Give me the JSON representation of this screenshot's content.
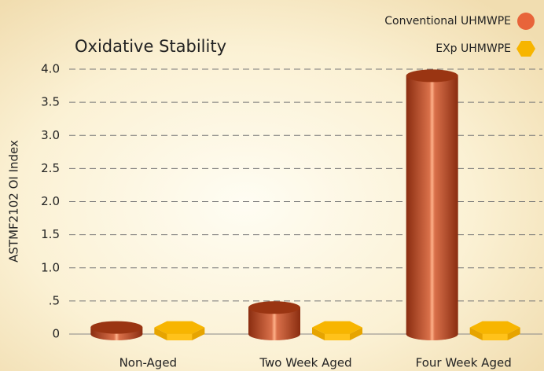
{
  "chart_data": {
    "type": "bar3d",
    "title": "Oxidative Stability",
    "y_label": "ASTMF2102 OI Index",
    "categories": [
      "Non-Aged",
      "Two Week Aged",
      "Four Week Aged"
    ],
    "series": [
      {
        "name": "Conventional UHMWPE",
        "color": "#e8643a",
        "values": [
          0.1,
          0.4,
          3.9
        ]
      },
      {
        "name": "EXp UHMWPE",
        "color": "#f7b500",
        "values": [
          0.1,
          0.1,
          0.1
        ]
      }
    ],
    "ylim": [
      0,
      4
    ],
    "yticks": [
      0,
      {
        "value": 0.5,
        "label": ".5"
      },
      {
        "value": 1,
        "label": "1.0"
      },
      1.5,
      {
        "value": 2,
        "label": "2.0"
      },
      2.5,
      {
        "value": 3,
        "label": "3.0"
      },
      3.5,
      {
        "value": 4,
        "label": "4.0"
      }
    ],
    "grid": true,
    "legend": "top-right"
  }
}
